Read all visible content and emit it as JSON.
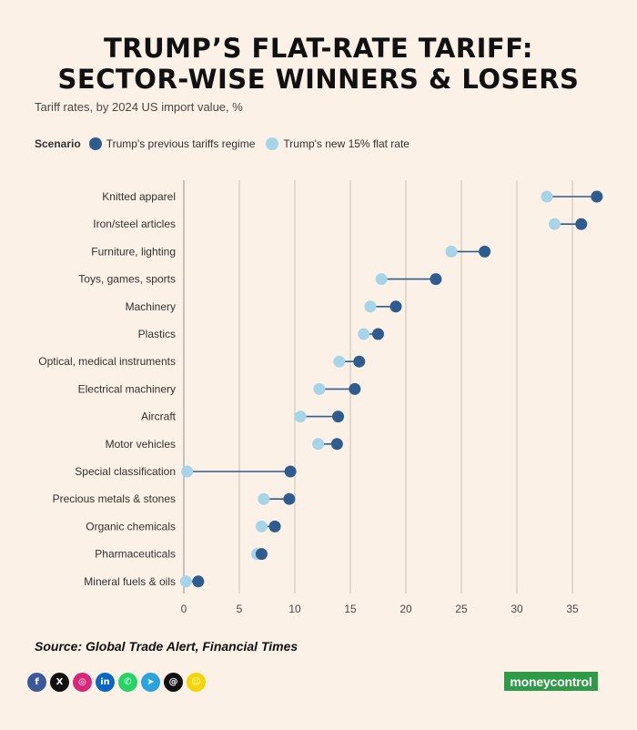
{
  "header": {
    "title_line1": "TRUMP’S FLAT-RATE TARIFF:",
    "title_line2": "SECTOR-WISE WINNERS & LOSERS",
    "subtitle": "Tariff rates, by 2024 US import value, %"
  },
  "legend": {
    "title": "Scenario",
    "items": [
      {
        "label": "Trump's previous tariffs regime",
        "color": "#2e5c8f"
      },
      {
        "label": "Trump's new 15% flat rate",
        "color": "#a6d5e9"
      }
    ]
  },
  "chart_data": {
    "type": "dumbbell",
    "title": "TRUMP’S FLAT-RATE TARIFF: SECTOR-WISE WINNERS & LOSERS",
    "subtitle": "Tariff rates, by 2024 US import value, %",
    "xlim": [
      0,
      37.5
    ],
    "xticks": [
      0,
      5,
      10,
      15,
      20,
      25,
      30,
      35
    ],
    "grid": true,
    "legend_position": "top-left",
    "categories": [
      "Knitted apparel",
      "Iron/steel articles",
      "Furniture, lighting",
      "Toys, games, sports",
      "Machinery",
      "Plastics",
      "Optical, medical instruments",
      "Electrical machinery",
      "Aircraft",
      "Motor vehicles",
      "Special classification",
      "Precious metals & stones",
      "Organic chemicals",
      "Pharmaceuticals",
      "Mineral fuels & oils"
    ],
    "series": [
      {
        "name": "Trump's previous tariffs regime",
        "values": [
          37.2,
          35.8,
          27.1,
          22.7,
          19.1,
          17.5,
          15.8,
          15.4,
          13.9,
          13.8,
          9.6,
          9.5,
          8.2,
          7.0,
          1.3
        ]
      },
      {
        "name": "Trump's new 15% flat rate",
        "values": [
          32.7,
          33.4,
          24.1,
          17.8,
          16.8,
          16.2,
          14.0,
          12.2,
          10.5,
          12.1,
          0.3,
          7.2,
          7.0,
          6.6,
          0.2
        ]
      }
    ]
  },
  "footer": {
    "source": "Source: Global Trade Alert, Financial Times",
    "brand": "moneycontrol",
    "social": [
      {
        "name": "facebook-icon",
        "glyph": "f",
        "color": "#3b5998"
      },
      {
        "name": "x-icon",
        "glyph": "X",
        "color": "#111111"
      },
      {
        "name": "instagram-icon",
        "glyph": "◎",
        "color": "#d6287a"
      },
      {
        "name": "linkedin-icon",
        "glyph": "in",
        "color": "#0a66c2"
      },
      {
        "name": "whatsapp-icon",
        "glyph": "✆",
        "color": "#25d366"
      },
      {
        "name": "telegram-icon",
        "glyph": "➤",
        "color": "#2aa3df"
      },
      {
        "name": "threads-icon",
        "glyph": "@",
        "color": "#111111"
      },
      {
        "name": "snapchat-icon",
        "glyph": "☺",
        "color": "#f5d400"
      }
    ]
  }
}
